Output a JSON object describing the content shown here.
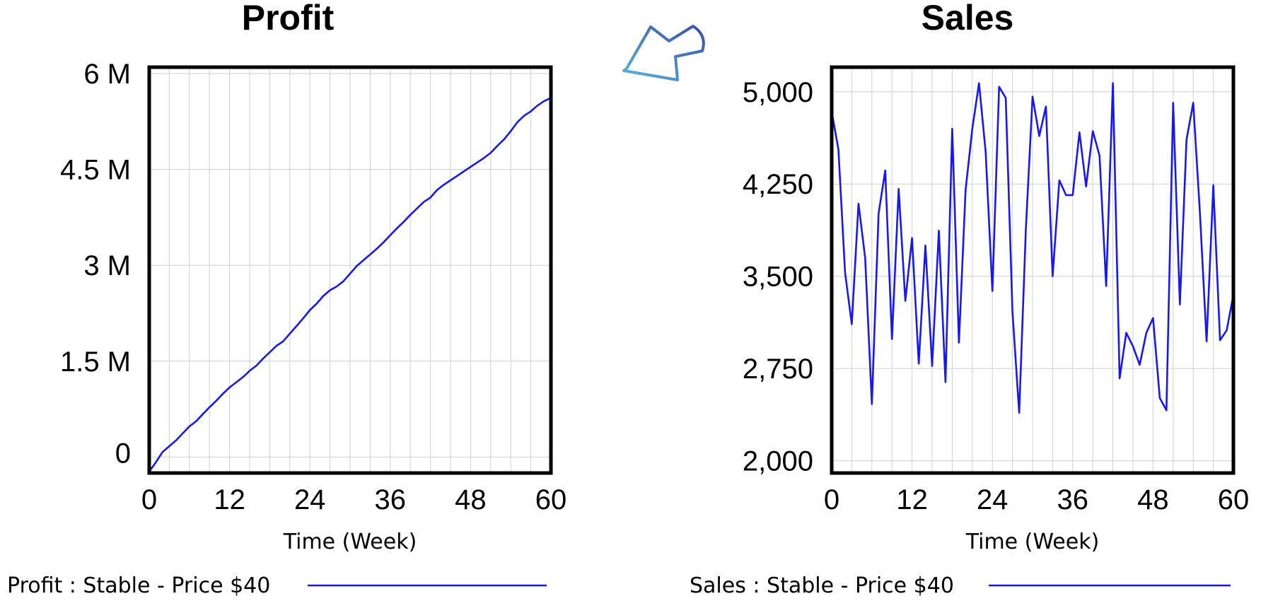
{
  "chart_data": [
    {
      "type": "line",
      "title": "Profit",
      "xlabel": "Time (Week)",
      "ylabel": "",
      "xlim": [
        0,
        60
      ],
      "ylim": [
        -250000,
        5850000
      ],
      "x_ticks": [
        0,
        12,
        24,
        36,
        48,
        60
      ],
      "x_tick_labels": [
        "0",
        "12",
        "24",
        "36",
        "48",
        "60"
      ],
      "y_ticks": [
        0,
        1500000,
        3000000,
        4500000,
        6000000
      ],
      "y_tick_labels": [
        "0",
        "1.5 M",
        "3 M",
        "4.5 M",
        "6 M"
      ],
      "grid": true,
      "legend": "bottom",
      "series": [
        {
          "name": "Profit : Stable - Price $40",
          "color": "#1818ee",
          "x": [
            0,
            1,
            2,
            3,
            4,
            5,
            6,
            7,
            8,
            9,
            10,
            11,
            12,
            13,
            14,
            15,
            16,
            17,
            18,
            19,
            20,
            21,
            22,
            23,
            24,
            25,
            26,
            27,
            28,
            29,
            30,
            31,
            32,
            33,
            34,
            35,
            36,
            37,
            38,
            39,
            40,
            41,
            42,
            43,
            44,
            45,
            46,
            47,
            48,
            49,
            50,
            51,
            52,
            53,
            54,
            55,
            56,
            57,
            58,
            59,
            60
          ],
          "values": [
            -230000,
            -80000,
            80000,
            170000,
            260000,
            370000,
            480000,
            560000,
            670000,
            780000,
            880000,
            990000,
            1090000,
            1170000,
            1250000,
            1350000,
            1430000,
            1540000,
            1640000,
            1740000,
            1810000,
            1930000,
            2050000,
            2170000,
            2300000,
            2400000,
            2520000,
            2610000,
            2670000,
            2750000,
            2870000,
            2990000,
            3080000,
            3170000,
            3260000,
            3360000,
            3470000,
            3580000,
            3680000,
            3790000,
            3890000,
            3990000,
            4060000,
            4180000,
            4260000,
            4330000,
            4400000,
            4470000,
            4540000,
            4610000,
            4680000,
            4760000,
            4870000,
            4970000,
            5100000,
            5240000,
            5340000,
            5410000,
            5500000,
            5570000,
            5620000
          ]
        }
      ]
    },
    {
      "type": "line",
      "title": "Sales",
      "xlabel": "Time (Week)",
      "ylabel": "",
      "xlim": [
        0,
        60
      ],
      "ylim": [
        1850000,
        5100000
      ],
      "y_scale_note": "",
      "x_ticks": [
        0,
        12,
        24,
        36,
        48,
        60
      ],
      "x_tick_labels": [
        "0",
        "12",
        "24",
        "36",
        "48",
        "60"
      ],
      "y_ticks": [
        2000,
        2750,
        3500,
        4250,
        5000
      ],
      "y_tick_labels": [
        "2,000",
        "2,750",
        "3,500",
        "4,250",
        "5,000"
      ],
      "grid": true,
      "legend": "bottom",
      "series": [
        {
          "name": "Sales : Stable - Price $40",
          "color": "#1818ee",
          "x": [
            0,
            1,
            2,
            3,
            4,
            5,
            6,
            7,
            8,
            9,
            10,
            11,
            12,
            13,
            14,
            15,
            16,
            17,
            18,
            19,
            20,
            21,
            22,
            23,
            24,
            25,
            26,
            27,
            28,
            29,
            30,
            31,
            32,
            33,
            34,
            35,
            36,
            37,
            38,
            39,
            40,
            41,
            42,
            43,
            44,
            45,
            46,
            47,
            48,
            49,
            50,
            51,
            52,
            53,
            54,
            55,
            56,
            57,
            58,
            59,
            60
          ],
          "values": [
            4840,
            4530,
            3530,
            3110,
            4090,
            3650,
            2460,
            4010,
            4360,
            2990,
            4210,
            3300,
            3810,
            2790,
            3750,
            2770,
            3870,
            2640,
            4700,
            2960,
            4200,
            4700,
            5070,
            4510,
            3380,
            5040,
            4950,
            3210,
            2390,
            3880,
            4960,
            4640,
            4880,
            3500,
            4280,
            4160,
            4160,
            4670,
            4230,
            4680,
            4480,
            3420,
            5070,
            2670,
            3040,
            2930,
            2780,
            3040,
            3160,
            2510,
            2410,
            4910,
            3270,
            4610,
            4910,
            4010,
            2970,
            4240,
            2980,
            3060,
            3350
          ]
        }
      ]
    }
  ],
  "profit_title": "Profit",
  "sales_title": "Sales",
  "profit_xlabel": "Time (Week)",
  "sales_xlabel": "Time (Week)",
  "profit_legend": "Profit : Stable - Price $40",
  "sales_legend": "Sales : Stable - Price $40",
  "cursor_icon": "arrow-cursor-icon",
  "colors": {
    "series": "#1818ee",
    "grid": "#cfcfcf",
    "frame": "#000000",
    "cursor_start": "#5ab4dc",
    "cursor_end": "#3a4fa8"
  }
}
